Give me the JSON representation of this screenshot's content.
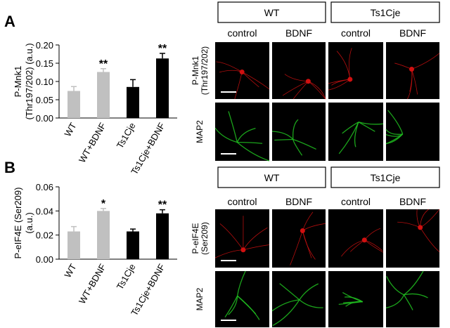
{
  "panel_labels": [
    "A",
    "B"
  ],
  "chart_data": [
    {
      "type": "bar",
      "y_label": [
        "P-Mnk1",
        "(Thr197/202) (a.u.)"
      ],
      "categories": [
        "WT",
        "WT+BDNF",
        "Ts1Cje",
        "Ts1Cje+BDNF"
      ],
      "values": [
        0.074,
        0.126,
        0.085,
        0.163
      ],
      "errors": [
        0.012,
        0.009,
        0.02,
        0.014
      ],
      "colors": [
        "#c0c0c0",
        "#c0c0c0",
        "#000000",
        "#000000"
      ],
      "annotations": [
        null,
        "**",
        null,
        "**"
      ],
      "ylim": [
        0,
        0.2
      ],
      "yticks": [
        {
          "value": 0,
          "label": "0.00"
        },
        {
          "value": 0.05,
          "label": "0.05"
        },
        {
          "value": 0.1,
          "label": "0.10"
        },
        {
          "value": 0.15,
          "label": "0.15"
        },
        {
          "value": 0.2,
          "label": "0.20"
        }
      ]
    },
    {
      "type": "bar",
      "y_label": [
        "P-eIF4E (Ser209)",
        "(a.u.)"
      ],
      "categories": [
        "WT",
        "WT+BDNF",
        "Ts1Cje",
        "Ts1Cje+BDNF"
      ],
      "values": [
        0.023,
        0.04,
        0.023,
        0.038
      ],
      "errors": [
        0.004,
        0.002,
        0.002,
        0.003
      ],
      "colors": [
        "#c0c0c0",
        "#c0c0c0",
        "#000000",
        "#000000"
      ],
      "annotations": [
        null,
        "*",
        null,
        "**"
      ],
      "ylim": [
        0,
        0.06
      ],
      "yticks": [
        {
          "value": 0,
          "label": "0.00"
        },
        {
          "value": 0.02,
          "label": "0.02"
        },
        {
          "value": 0.04,
          "label": "0.04"
        },
        {
          "value": 0.06,
          "label": "0.06"
        }
      ]
    }
  ],
  "image_panels": [
    {
      "groups": [
        "WT",
        "Ts1Cje"
      ],
      "columns": [
        "control",
        "BDNF",
        "control",
        "BDNF"
      ],
      "rows": [
        [
          "P-Mnk1",
          "(Thr197/202)"
        ],
        [
          "MAP2"
        ]
      ]
    },
    {
      "groups": [
        "WT",
        "Ts1Cje"
      ],
      "columns": [
        "control",
        "BDNF",
        "control",
        "BDNF"
      ],
      "rows": [
        [
          "P-eIF4E",
          "(Ser209)"
        ],
        [
          "MAP2"
        ]
      ]
    }
  ]
}
